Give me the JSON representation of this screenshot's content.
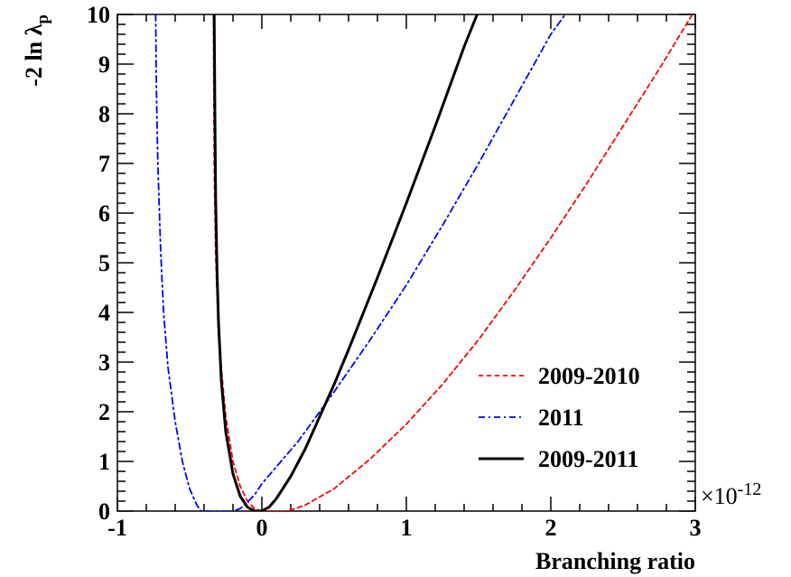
{
  "chart_data": {
    "type": "line",
    "title": "",
    "xlabel": "Branching ratio",
    "ylabel": "-2 ln λ",
    "ylabel_subscript": "p",
    "x_multiplier": "×10",
    "x_multiplier_exponent": "-12",
    "xlim": [
      -1,
      3
    ],
    "ylim": [
      0,
      10
    ],
    "x_ticks": [
      -1,
      0,
      1,
      2,
      3
    ],
    "x_tick_labels": [
      "-1",
      "0",
      "1",
      "2",
      "3"
    ],
    "y_ticks": [
      0,
      1,
      2,
      3,
      4,
      5,
      6,
      7,
      8,
      9,
      10
    ],
    "y_tick_labels": [
      "0",
      "1",
      "2",
      "3",
      "4",
      "5",
      "6",
      "7",
      "8",
      "9",
      "10"
    ],
    "grid": false,
    "legend_position": "bottom-right",
    "series": [
      {
        "name": "2009-2010",
        "color": "#ff0000",
        "style": "dashed",
        "x": [
          -0.335,
          -0.33,
          -0.32,
          -0.3,
          -0.25,
          -0.2,
          -0.15,
          -0.1,
          -0.05,
          0.0,
          0.05,
          0.1,
          0.15,
          0.2,
          0.3,
          0.5,
          0.75,
          1.0,
          1.25,
          1.5,
          1.75,
          2.0,
          2.25,
          2.5,
          2.75,
          2.98
        ],
        "y": [
          10.0,
          7.0,
          5.2,
          3.5,
          1.9,
          1.0,
          0.5,
          0.2,
          0.05,
          0.0,
          0.0,
          0.0,
          0.0,
          0.02,
          0.12,
          0.45,
          1.05,
          1.75,
          2.55,
          3.45,
          4.45,
          5.5,
          6.6,
          7.75,
          8.9,
          10.0
        ]
      },
      {
        "name": "2011",
        "color": "#0000ff",
        "style": "dashdot",
        "x": [
          -0.735,
          -0.73,
          -0.72,
          -0.7,
          -0.68,
          -0.65,
          -0.6,
          -0.55,
          -0.5,
          -0.45,
          -0.42,
          -0.38,
          -0.32,
          -0.25,
          -0.2,
          -0.15,
          -0.1,
          -0.05,
          0.0,
          0.25,
          0.5,
          0.75,
          1.0,
          1.25,
          1.5,
          1.75,
          2.0,
          2.1
        ],
        "y": [
          10.0,
          8.5,
          7.0,
          5.2,
          4.0,
          2.9,
          1.8,
          1.0,
          0.45,
          0.12,
          0.0,
          0.0,
          0.0,
          0.0,
          0.0,
          0.05,
          0.18,
          0.33,
          0.55,
          1.4,
          2.4,
          3.45,
          4.55,
          5.75,
          7.0,
          8.3,
          9.6,
          10.0
        ]
      },
      {
        "name": "2009-2011",
        "color": "#000000",
        "style": "solid",
        "x": [
          -0.33,
          -0.325,
          -0.32,
          -0.31,
          -0.3,
          -0.28,
          -0.25,
          -0.2,
          -0.15,
          -0.1,
          -0.05,
          0.0,
          0.05,
          0.1,
          0.2,
          0.3,
          0.4,
          0.5,
          0.6,
          0.8,
          1.0,
          1.2,
          1.4,
          1.49
        ],
        "y": [
          10.0,
          8.0,
          6.3,
          4.8,
          3.8,
          2.6,
          1.6,
          0.75,
          0.3,
          0.08,
          0.0,
          0.0,
          0.08,
          0.25,
          0.7,
          1.25,
          1.9,
          2.55,
          3.25,
          4.7,
          6.2,
          7.75,
          9.35,
          10.0
        ]
      }
    ]
  }
}
